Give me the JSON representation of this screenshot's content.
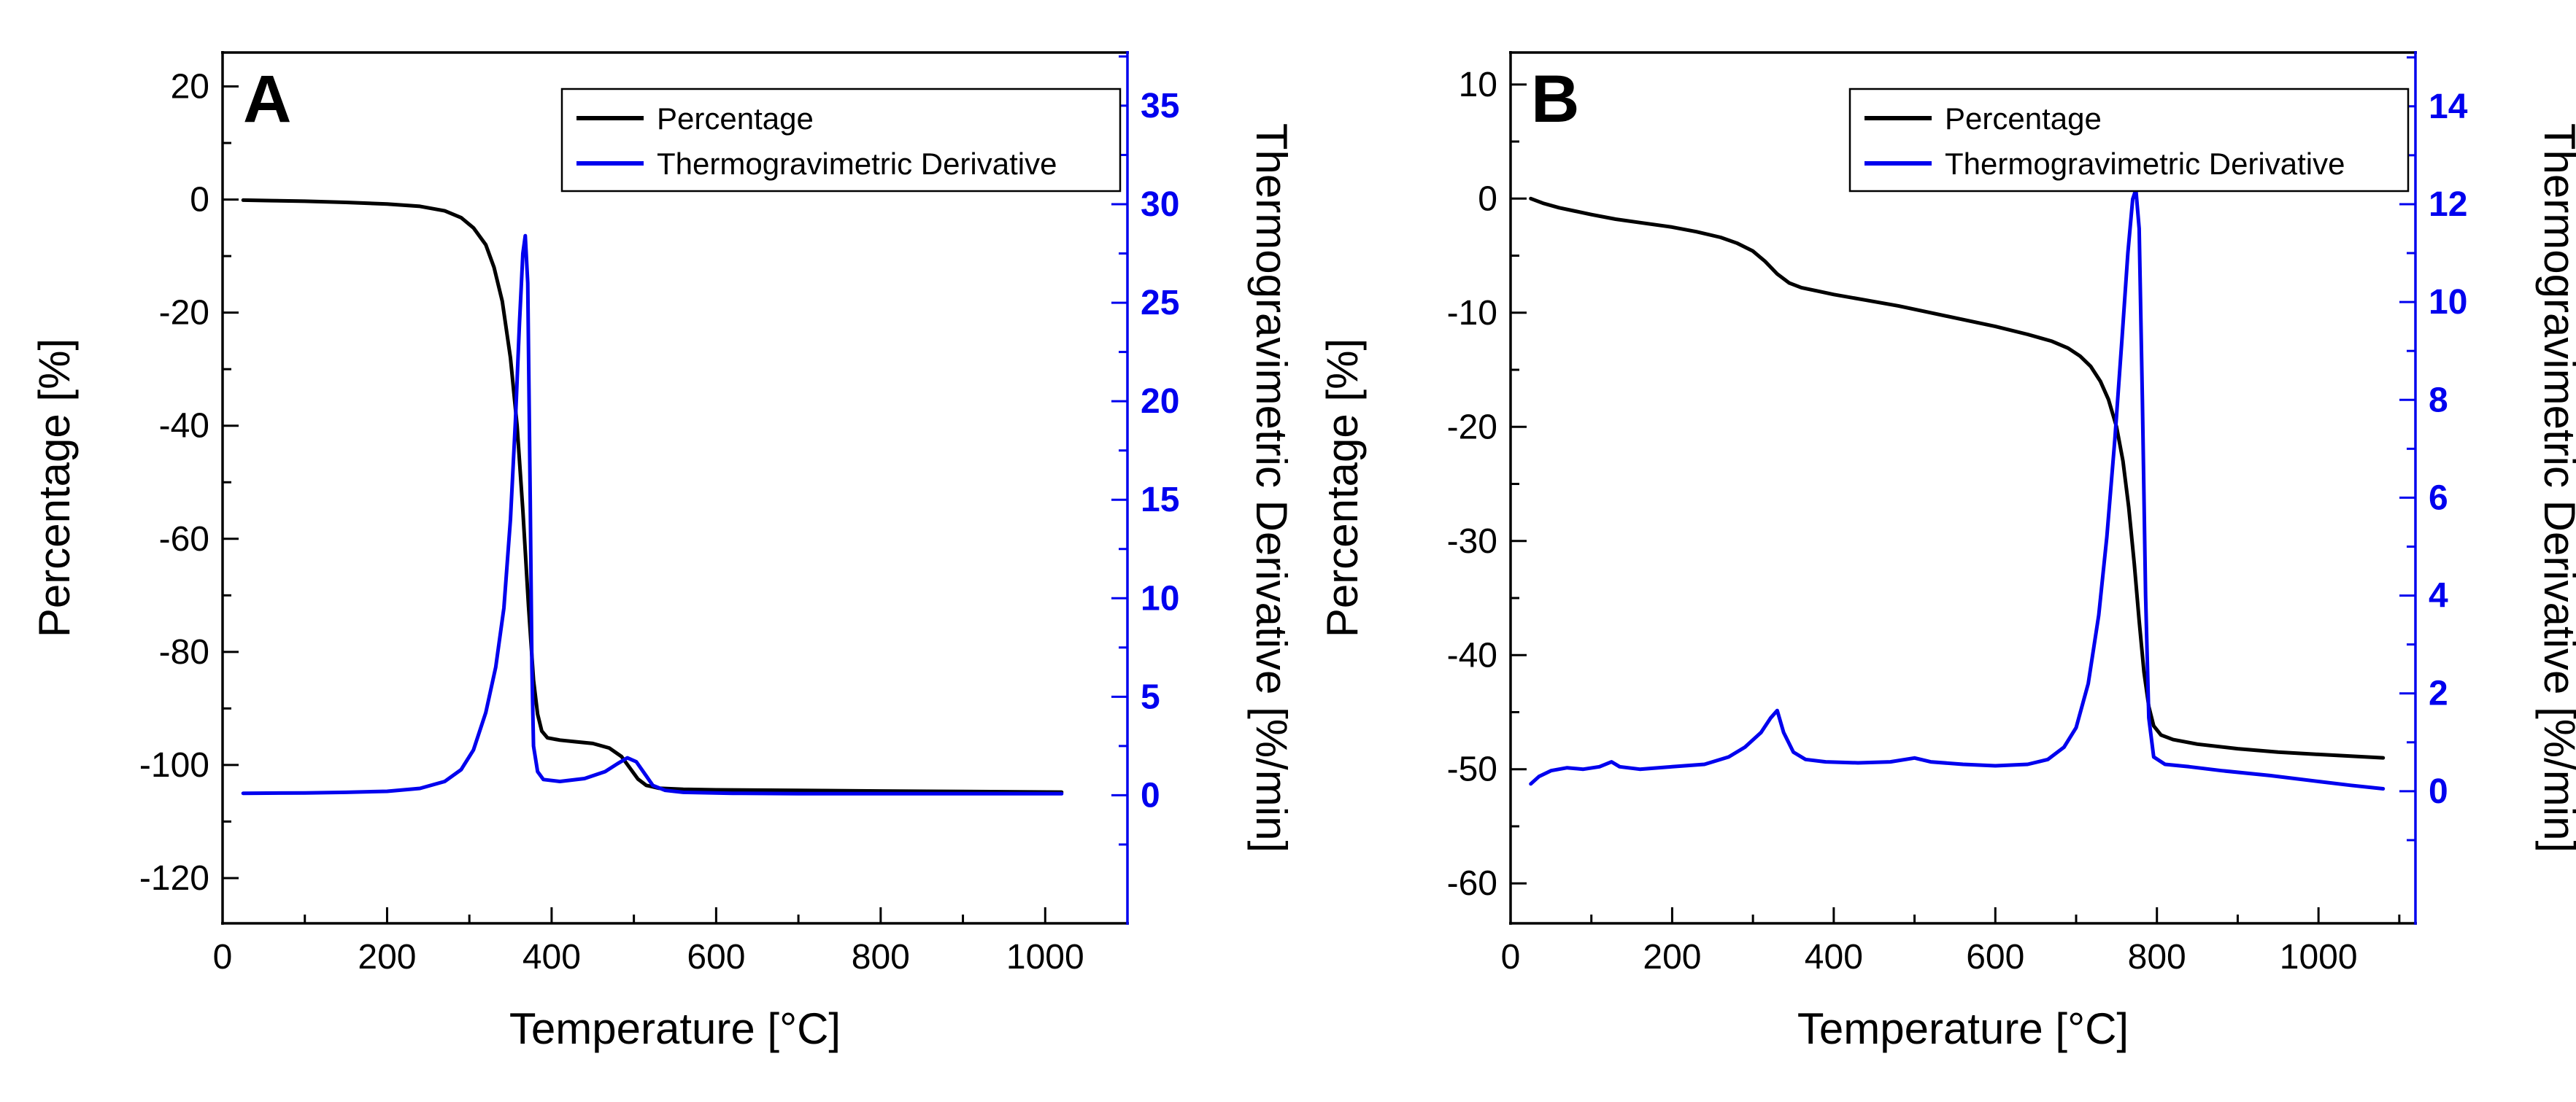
{
  "figure": {
    "background": "#ffffff",
    "panels": [
      "A",
      "B"
    ]
  },
  "chart_data": [
    {
      "type": "line",
      "panel_label": "A",
      "xlabel": "Temperature [°C]",
      "x_axis": {
        "ticks": [
          0,
          200,
          400,
          600,
          800,
          1000
        ],
        "lim": [
          0,
          1100
        ]
      },
      "left_axis": {
        "label": "Percentage [%]",
        "ticks": [
          -120,
          -100,
          -80,
          -60,
          -40,
          -20,
          0,
          20
        ],
        "lim": [
          -128,
          26
        ],
        "color": "#000000"
      },
      "right_axis": {
        "label": "Thermogravimetric Derivative [%/min]",
        "ticks": [
          0,
          5,
          10,
          15,
          20,
          25,
          30,
          35
        ],
        "lim": [
          -6.5,
          37.7
        ],
        "color": "#0000EE"
      },
      "legend": {
        "entries": [
          {
            "label": "Percentage",
            "color": "#000000"
          },
          {
            "label": "Thermogravimetric Derivative",
            "color": "#0000EE"
          }
        ]
      },
      "series": [
        {
          "name": "Percentage",
          "axis": "left",
          "color": "#000000",
          "points": [
            [
              25,
              -0.1
            ],
            [
              60,
              -0.2
            ],
            [
              100,
              -0.3
            ],
            [
              150,
              -0.5
            ],
            [
              200,
              -0.8
            ],
            [
              240,
              -1.2
            ],
            [
              270,
              -2.0
            ],
            [
              290,
              -3.2
            ],
            [
              305,
              -5.0
            ],
            [
              320,
              -8.0
            ],
            [
              330,
              -12
            ],
            [
              340,
              -18
            ],
            [
              350,
              -28
            ],
            [
              358,
              -40
            ],
            [
              365,
              -55
            ],
            [
              372,
              -72
            ],
            [
              378,
              -85
            ],
            [
              383,
              -91
            ],
            [
              388,
              -94
            ],
            [
              395,
              -95.2
            ],
            [
              410,
              -95.6
            ],
            [
              430,
              -95.9
            ],
            [
              450,
              -96.2
            ],
            [
              470,
              -97.0
            ],
            [
              485,
              -98.5
            ],
            [
              495,
              -100.5
            ],
            [
              505,
              -102.5
            ],
            [
              515,
              -103.6
            ],
            [
              530,
              -104.1
            ],
            [
              560,
              -104.3
            ],
            [
              600,
              -104.4
            ],
            [
              700,
              -104.5
            ],
            [
              800,
              -104.6
            ],
            [
              900,
              -104.7
            ],
            [
              1020,
              -104.8
            ]
          ]
        },
        {
          "name": "Thermogravimetric Derivative",
          "axis": "right",
          "color": "#0000EE",
          "points": [
            [
              25,
              0.1
            ],
            [
              100,
              0.12
            ],
            [
              150,
              0.15
            ],
            [
              200,
              0.2
            ],
            [
              240,
              0.35
            ],
            [
              270,
              0.7
            ],
            [
              290,
              1.3
            ],
            [
              305,
              2.3
            ],
            [
              320,
              4.2
            ],
            [
              332,
              6.5
            ],
            [
              342,
              9.5
            ],
            [
              350,
              14
            ],
            [
              356,
              19
            ],
            [
              361,
              24
            ],
            [
              365,
              27.5
            ],
            [
              368,
              28.4
            ],
            [
              371,
              26
            ],
            [
              374,
              15
            ],
            [
              376,
              6.5
            ],
            [
              378,
              2.5
            ],
            [
              383,
              1.2
            ],
            [
              390,
              0.8
            ],
            [
              410,
              0.7
            ],
            [
              440,
              0.85
            ],
            [
              465,
              1.2
            ],
            [
              480,
              1.6
            ],
            [
              492,
              1.9
            ],
            [
              503,
              1.7
            ],
            [
              513,
              1.1
            ],
            [
              523,
              0.5
            ],
            [
              538,
              0.25
            ],
            [
              560,
              0.15
            ],
            [
              620,
              0.1
            ],
            [
              700,
              0.08
            ],
            [
              850,
              0.08
            ],
            [
              1020,
              0.08
            ]
          ]
        }
      ]
    },
    {
      "type": "line",
      "panel_label": "B",
      "xlabel": "Temperature [°C]",
      "x_axis": {
        "ticks": [
          0,
          200,
          400,
          600,
          800,
          1000
        ],
        "lim": [
          0,
          1120
        ]
      },
      "left_axis": {
        "label": "Percentage [%]",
        "ticks": [
          -60,
          -50,
          -40,
          -30,
          -20,
          -10,
          0,
          10
        ],
        "lim": [
          -63.5,
          12.8
        ],
        "color": "#000000"
      },
      "right_axis": {
        "label": "Thermogravimetric Derivative [%/min]",
        "ticks": [
          0,
          2,
          4,
          6,
          8,
          10,
          12,
          14
        ],
        "lim": [
          -2.7,
          15.1
        ],
        "color": "#0000EE"
      },
      "legend": {
        "entries": [
          {
            "label": "Percentage",
            "color": "#000000"
          },
          {
            "label": "Thermogravimetric Derivative",
            "color": "#0000EE"
          }
        ]
      },
      "series": [
        {
          "name": "Percentage",
          "axis": "left",
          "color": "#000000",
          "points": [
            [
              25,
              0
            ],
            [
              40,
              -0.4
            ],
            [
              60,
              -0.8
            ],
            [
              80,
              -1.1
            ],
            [
              100,
              -1.4
            ],
            [
              130,
              -1.8
            ],
            [
              160,
              -2.1
            ],
            [
              200,
              -2.5
            ],
            [
              230,
              -2.9
            ],
            [
              260,
              -3.4
            ],
            [
              280,
              -3.9
            ],
            [
              300,
              -4.6
            ],
            [
              315,
              -5.5
            ],
            [
              330,
              -6.6
            ],
            [
              345,
              -7.4
            ],
            [
              360,
              -7.8
            ],
            [
              380,
              -8.1
            ],
            [
              400,
              -8.4
            ],
            [
              440,
              -8.9
            ],
            [
              480,
              -9.4
            ],
            [
              520,
              -10.0
            ],
            [
              560,
              -10.6
            ],
            [
              600,
              -11.2
            ],
            [
              640,
              -11.9
            ],
            [
              670,
              -12.5
            ],
            [
              690,
              -13.1
            ],
            [
              705,
              -13.8
            ],
            [
              718,
              -14.7
            ],
            [
              730,
              -16.0
            ],
            [
              740,
              -17.6
            ],
            [
              750,
              -20.0
            ],
            [
              758,
              -23.0
            ],
            [
              765,
              -27.0
            ],
            [
              772,
              -32.0
            ],
            [
              778,
              -37.0
            ],
            [
              784,
              -41.5
            ],
            [
              790,
              -44.5
            ],
            [
              796,
              -46.2
            ],
            [
              805,
              -47.0
            ],
            [
              820,
              -47.4
            ],
            [
              850,
              -47.8
            ],
            [
              900,
              -48.2
            ],
            [
              950,
              -48.5
            ],
            [
              1000,
              -48.7
            ],
            [
              1080,
              -49.0
            ]
          ]
        },
        {
          "name": "Thermogravimetric Derivative",
          "axis": "right",
          "color": "#0000EE",
          "points": [
            [
              25,
              0.15
            ],
            [
              35,
              0.3
            ],
            [
              50,
              0.42
            ],
            [
              70,
              0.48
            ],
            [
              90,
              0.45
            ],
            [
              110,
              0.5
            ],
            [
              125,
              0.6
            ],
            [
              135,
              0.5
            ],
            [
              160,
              0.45
            ],
            [
              200,
              0.5
            ],
            [
              240,
              0.55
            ],
            [
              270,
              0.7
            ],
            [
              290,
              0.9
            ],
            [
              310,
              1.2
            ],
            [
              322,
              1.5
            ],
            [
              330,
              1.65
            ],
            [
              338,
              1.2
            ],
            [
              350,
              0.8
            ],
            [
              365,
              0.65
            ],
            [
              390,
              0.6
            ],
            [
              430,
              0.58
            ],
            [
              470,
              0.6
            ],
            [
              500,
              0.68
            ],
            [
              520,
              0.6
            ],
            [
              560,
              0.55
            ],
            [
              600,
              0.52
            ],
            [
              640,
              0.55
            ],
            [
              665,
              0.65
            ],
            [
              685,
              0.9
            ],
            [
              700,
              1.3
            ],
            [
              715,
              2.2
            ],
            [
              728,
              3.6
            ],
            [
              738,
              5.2
            ],
            [
              748,
              7.2
            ],
            [
              757,
              9.3
            ],
            [
              764,
              11.0
            ],
            [
              770,
              12.1
            ],
            [
              774,
              12.3
            ],
            [
              778,
              11.5
            ],
            [
              782,
              8.0
            ],
            [
              786,
              4.0
            ],
            [
              790,
              1.5
            ],
            [
              796,
              0.7
            ],
            [
              810,
              0.55
            ],
            [
              840,
              0.5
            ],
            [
              880,
              0.42
            ],
            [
              940,
              0.32
            ],
            [
              1000,
              0.2
            ],
            [
              1040,
              0.12
            ],
            [
              1080,
              0.05
            ]
          ]
        }
      ]
    }
  ]
}
